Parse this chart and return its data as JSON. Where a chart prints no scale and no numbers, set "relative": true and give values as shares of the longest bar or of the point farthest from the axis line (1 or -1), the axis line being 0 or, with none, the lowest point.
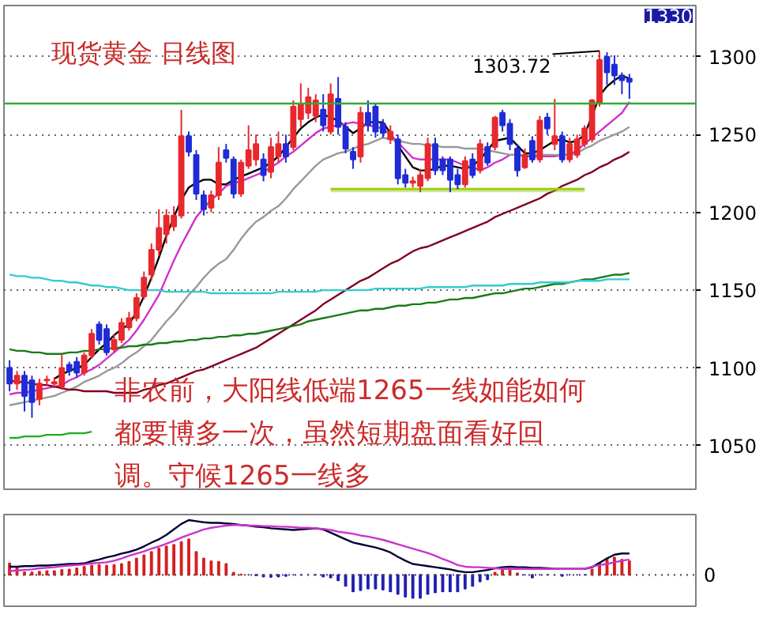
{
  "chart_data": [
    {
      "type": "candlestick",
      "title": "现货黄金  日线图",
      "categories": [
        null,
        null,
        null,
        null,
        null,
        null,
        null,
        null,
        null,
        null,
        null,
        null,
        null,
        null,
        null,
        null,
        null,
        null,
        null,
        null,
        null,
        null,
        null,
        null,
        null,
        null,
        null,
        null,
        null,
        null,
        null,
        null,
        null,
        null,
        null,
        null,
        null,
        null,
        null,
        null,
        null,
        null,
        null,
        null,
        null,
        null,
        null,
        null,
        null,
        null,
        null,
        null,
        null,
        null,
        null,
        null,
        null,
        null,
        null,
        null,
        null,
        null,
        null,
        null,
        null,
        null,
        null,
        null,
        null,
        null,
        null,
        null,
        null,
        null,
        null,
        null,
        null,
        null,
        null,
        null,
        null,
        null,
        null,
        null
      ],
      "ohlc": [
        [
          1100,
          1105,
          1085,
          1090
        ],
        [
          1090,
          1098,
          1086,
          1095
        ],
        [
          1095,
          1098,
          1072,
          1082
        ],
        [
          1092,
          1095,
          1068,
          1078
        ],
        [
          1080,
          1093,
          1076,
          1090
        ],
        [
          1092,
          1095,
          1089,
          1092.5
        ],
        [
          1090,
          1094,
          1087,
          1091
        ],
        [
          1088,
          1109,
          1086,
          1100
        ],
        [
          1102,
          1104,
          1095,
          1098
        ],
        [
          1104,
          1107,
          1094,
          1097
        ],
        [
          1097,
          1110,
          1095,
          1108
        ],
        [
          1108,
          1125,
          1106,
          1122
        ],
        [
          1128,
          1130,
          1115,
          1118
        ],
        [
          1125,
          1128,
          1108,
          1110
        ],
        [
          1112,
          1122,
          1110,
          1118
        ],
        [
          1118,
          1132,
          1116,
          1129
        ],
        [
          1126,
          1136,
          1124,
          1132
        ],
        [
          1132,
          1148,
          1130,
          1145
        ],
        [
          1146,
          1162,
          1144,
          1158
        ],
        [
          1160,
          1180,
          1156,
          1176
        ],
        [
          1176,
          1202,
          1172,
          1190
        ],
        [
          1186,
          1202,
          1180,
          1198
        ],
        [
          1191,
          1204,
          1188,
          1198
        ],
        [
          1198,
          1266,
          1196,
          1249
        ],
        [
          1249,
          1252,
          1236,
          1239
        ],
        [
          1237,
          1240,
          1208,
          1212
        ],
        [
          1211,
          1214,
          1198,
          1202
        ],
        [
          1203,
          1214,
          1200,
          1211
        ],
        [
          1211,
          1242,
          1208,
          1232
        ],
        [
          1240,
          1244,
          1232,
          1235
        ],
        [
          1234,
          1236,
          1209,
          1212
        ],
        [
          1212,
          1234,
          1210,
          1232
        ],
        [
          1230,
          1256,
          1228,
          1240
        ],
        [
          1234,
          1250,
          1230,
          1244
        ],
        [
          1234,
          1238,
          1220,
          1224
        ],
        [
          1226,
          1248,
          1222,
          1242
        ],
        [
          1236,
          1252,
          1232,
          1244
        ],
        [
          1244,
          1250,
          1232,
          1236
        ],
        [
          1242,
          1272,
          1240,
          1268
        ],
        [
          1260,
          1283,
          1255,
          1270
        ],
        [
          1264,
          1280,
          1260,
          1274
        ],
        [
          1262,
          1276,
          1258,
          1272
        ],
        [
          1266,
          1276,
          1252,
          1256
        ],
        [
          1252,
          1283,
          1250,
          1276
        ],
        [
          1273,
          1287,
          1250,
          1255
        ],
        [
          1255,
          1258,
          1238,
          1241
        ],
        [
          1239,
          1242,
          1228,
          1234
        ],
        [
          1236,
          1268,
          1232,
          1264
        ],
        [
          1264,
          1272,
          1252,
          1256
        ],
        [
          1268,
          1270,
          1248,
          1252
        ],
        [
          1257,
          1260,
          1248,
          1251
        ],
        [
          1247,
          1256,
          1244,
          1252
        ],
        [
          1247,
          1250,
          1218,
          1222
        ],
        [
          1224,
          1228,
          1216,
          1219
        ],
        [
          1219,
          1223,
          1216,
          1220
        ],
        [
          1217,
          1228,
          1213,
          1224
        ],
        [
          1222,
          1248,
          1220,
          1244
        ],
        [
          1244,
          1248,
          1224,
          1227
        ],
        [
          1234,
          1236,
          1224,
          1227
        ],
        [
          1234,
          1236,
          1213,
          1221
        ],
        [
          1224,
          1228,
          1215,
          1218
        ],
        [
          1218,
          1236,
          1216,
          1233
        ],
        [
          1234,
          1238,
          1222,
          1224
        ],
        [
          1227,
          1247,
          1225,
          1244
        ],
        [
          1242,
          1245,
          1230,
          1232
        ],
        [
          1242,
          1262,
          1240,
          1261
        ],
        [
          1264,
          1266,
          1252,
          1256
        ],
        [
          1257,
          1260,
          1240,
          1244
        ],
        [
          1241,
          1244,
          1223,
          1227
        ],
        [
          1229,
          1241,
          1228,
          1237
        ],
        [
          1246,
          1249,
          1232,
          1234
        ],
        [
          1234,
          1262,
          1232,
          1259
        ],
        [
          1261,
          1264,
          1250,
          1254
        ],
        [
          1244,
          1273,
          1240,
          1249
        ],
        [
          1249,
          1252,
          1232,
          1234
        ],
        [
          1234,
          1248,
          1232,
          1244
        ],
        [
          1237,
          1250,
          1235,
          1247
        ],
        [
          1244,
          1256,
          1242,
          1254
        ],
        [
          1247,
          1273,
          1245,
          1272
        ],
        [
          1270,
          1303.72,
          1268,
          1298
        ],
        [
          1300,
          1303,
          1282,
          1290
        ],
        [
          1295,
          1301,
          1282,
          1288
        ],
        [
          1288,
          1290,
          1276,
          1285
        ],
        [
          1286,
          1289,
          1273,
          1284
        ]
      ],
      "series": [
        {
          "type": "line",
          "color": "#000000",
          "values": [
            null,
            null,
            null,
            null,
            null,
            null,
            1093,
            1096,
            1098,
            1100,
            1102,
            1107,
            1112,
            1116,
            1121,
            1125,
            1128,
            1136,
            1146,
            1158,
            1171,
            1185,
            1197,
            1208,
            1216,
            1219,
            1221,
            1221,
            1218,
            1218,
            1221,
            1223,
            1225,
            1227,
            1229,
            1232,
            1236,
            1242,
            1248,
            1254,
            1258,
            1261,
            1263,
            1261,
            1259,
            1255,
            1251,
            1254,
            1258,
            1258,
            1258,
            1251,
            1243,
            1236,
            1229,
            1227,
            1227,
            1228,
            1230,
            1230,
            1229,
            1228,
            1230,
            1234,
            1240,
            1246,
            1247,
            1248,
            1243,
            1238,
            1238,
            1240,
            1243,
            1246,
            1247,
            1245,
            1246,
            1250,
            1262,
            1275,
            1281,
            1285,
            1288,
            1286
          ]
        },
        {
          "type": "line",
          "color": "#d030d0",
          "values": [
            1083,
            1084,
            1084,
            1085,
            1086,
            1087,
            1088,
            1089,
            1092,
            1094,
            1097,
            1099,
            1102,
            1106,
            1110,
            1114,
            1118,
            1124,
            1131,
            1139,
            1147,
            1158,
            1169,
            1179,
            1188,
            1197,
            1203,
            1208,
            1212,
            1217,
            1219,
            1220,
            1222,
            1224,
            1226,
            1229,
            1232,
            1236,
            1239,
            1243,
            1247,
            1251,
            1254,
            1255,
            1256,
            1257,
            1258,
            1257,
            1256,
            1255,
            1254,
            1250,
            1245,
            1240,
            1235,
            1234,
            1234,
            1234,
            1234,
            1234,
            1232,
            1230,
            1229,
            1227,
            1229,
            1232,
            1234,
            1237,
            1237,
            1236,
            1236,
            1236,
            1236,
            1236,
            1237,
            1237,
            1240,
            1244,
            1248,
            1252,
            1256,
            1260,
            1264,
            1271
          ]
        },
        {
          "type": "line",
          "color": "#999999",
          "values": [
            1076,
            1077,
            1078,
            1079,
            1080,
            1081,
            1082,
            1084,
            1086,
            1088,
            1091,
            1093,
            1095,
            1098,
            1100,
            1103,
            1107,
            1110,
            1114,
            1118,
            1124,
            1130,
            1135,
            1141,
            1147,
            1152,
            1158,
            1163,
            1167,
            1170,
            1176,
            1183,
            1189,
            1194,
            1197,
            1201,
            1204,
            1209,
            1215,
            1220,
            1225,
            1230,
            1234,
            1236,
            1238,
            1239,
            1241,
            1243,
            1244,
            1246,
            1248,
            1247,
            1246,
            1245,
            1244,
            1244,
            1243,
            1243,
            1242,
            1242,
            1242,
            1241,
            1241,
            1241,
            1240,
            1239,
            1238,
            1237,
            1237,
            1237,
            1237,
            1237,
            1237,
            1237,
            1237,
            1237,
            1238,
            1241,
            1243,
            1246,
            1248,
            1250,
            1252,
            1255
          ]
        },
        {
          "type": "line",
          "color": "#800020",
          "values": [
            1092,
            1091,
            1091,
            1090,
            1089,
            1089,
            1088,
            1087,
            1086,
            1086,
            1085,
            1085,
            1085,
            1085,
            1084,
            1084,
            1084,
            1084,
            1086,
            1087,
            1089,
            1090,
            1092,
            1094,
            1096,
            1098,
            1099,
            1101,
            1103,
            1105,
            1107,
            1109,
            1111,
            1113,
            1116,
            1119,
            1122,
            1125,
            1128,
            1131,
            1134,
            1137,
            1141,
            1144,
            1147,
            1150,
            1153,
            1156,
            1158,
            1161,
            1164,
            1167,
            1169,
            1172,
            1175,
            1177,
            1178,
            1180,
            1182,
            1184,
            1186,
            1188,
            1190,
            1192,
            1194,
            1197,
            1199,
            1201,
            1203,
            1205,
            1207,
            1209,
            1212,
            1214,
            1217,
            1219,
            1221,
            1224,
            1226,
            1229,
            1231,
            1234,
            1236,
            1239
          ]
        },
        {
          "type": "line",
          "color": "#1a7a1a",
          "values": [
            1112,
            1111,
            1111,
            1110,
            1110,
            1109,
            1109,
            1109,
            1110,
            1110,
            1111,
            1111,
            1112,
            1112,
            1113,
            1113,
            1114,
            1114,
            1115,
            1115,
            1116,
            1116,
            1117,
            1117,
            1118,
            1118,
            1119,
            1119,
            1120,
            1120,
            1121,
            1121,
            1122,
            1122,
            1123,
            1124,
            1125,
            1126,
            1127,
            1128,
            1130,
            1131,
            1132,
            1133,
            1134,
            1135,
            1136,
            1137,
            1137,
            1138,
            1138,
            1139,
            1140,
            1140,
            1141,
            1141,
            1142,
            1142,
            1143,
            1144,
            1144,
            1145,
            1145,
            1146,
            1147,
            1148,
            1148,
            1149,
            1150,
            1151,
            1151,
            1152,
            1153,
            1154,
            1154,
            1155,
            1156,
            1157,
            1157,
            1158,
            1159,
            1160,
            1160,
            1161
          ]
        },
        {
          "type": "line",
          "color": "#33cccc",
          "values": [
            1160,
            1159,
            1159,
            1158,
            1158,
            1157,
            1156,
            1156,
            1155,
            1155,
            1154,
            1153,
            1153,
            1152,
            1152,
            1151,
            1150,
            1150,
            1150,
            1150,
            1150,
            1149,
            1149,
            1149,
            1149,
            1149,
            1149,
            1148,
            1148,
            1148,
            1148,
            1148,
            1148,
            1148,
            1148,
            1148,
            1149,
            1149,
            1149,
            1149,
            1149,
            1149,
            1150,
            1150,
            1150,
            1150,
            1150,
            1150,
            1150,
            1151,
            1151,
            1151,
            1151,
            1151,
            1151,
            1151,
            1152,
            1152,
            1152,
            1152,
            1152,
            1152,
            1153,
            1153,
            1153,
            1153,
            1153,
            1154,
            1154,
            1154,
            1154,
            1155,
            1155,
            1155,
            1155,
            1155,
            1156,
            1156,
            1156,
            1156,
            1157,
            1157,
            1157,
            1157
          ]
        },
        {
          "type": "line",
          "color": "#22aa22",
          "values": [
            1055,
            1055,
            1056,
            1056,
            1056,
            1057,
            1057,
            1057,
            1058,
            1058,
            1058,
            1059,
            null,
            null,
            null,
            null,
            null,
            null,
            null,
            null,
            null,
            null,
            null,
            null,
            null,
            null,
            null,
            null,
            null,
            null,
            null,
            null,
            null,
            null,
            null,
            null,
            null,
            null,
            null,
            null,
            null,
            null,
            null,
            null,
            null,
            null,
            null,
            null,
            null,
            null,
            null,
            null,
            null,
            null,
            null,
            null,
            null,
            null,
            null,
            null,
            null,
            null,
            null,
            null,
            null,
            null,
            null,
            null,
            null,
            null,
            null,
            null,
            null,
            null,
            null,
            null,
            null,
            null,
            null,
            null,
            null,
            null,
            null,
            null
          ]
        },
        {
          "type": "line",
          "color": "#99cc11",
          "values": [
            null,
            null,
            null,
            null,
            null,
            null,
            null,
            null,
            null,
            null,
            null,
            null,
            null,
            null,
            null,
            null,
            null,
            null,
            null,
            null,
            null,
            null,
            null,
            null,
            null,
            null,
            null,
            null,
            null,
            null,
            null,
            null,
            null,
            null,
            null,
            null,
            null,
            null,
            null,
            null,
            null,
            null,
            null,
            1215,
            1215,
            1215,
            1215,
            1215,
            1215,
            1215,
            1215,
            1215,
            1215,
            1215,
            1215,
            1215,
            1215,
            1215,
            1215,
            1215,
            1215,
            1215,
            1215,
            1215,
            1215,
            1215,
            1215,
            1215,
            1215,
            1215,
            1215,
            1215,
            1215,
            1215,
            1215,
            1215,
            1215,
            1215,
            null,
            null,
            null,
            null,
            null,
            null
          ],
          "lower": [
            null,
            null,
            null,
            null,
            null,
            null,
            null,
            null,
            null,
            null,
            null,
            null,
            null,
            null,
            null,
            null,
            null,
            null,
            null,
            null,
            null,
            null,
            null,
            null,
            null,
            null,
            null,
            null,
            null,
            null,
            null,
            null,
            null,
            null,
            null,
            null,
            null,
            null,
            null,
            null,
            null,
            null,
            null,
            1213,
            1213,
            1213,
            1213,
            1213,
            1213,
            1213,
            1213,
            1213,
            1213,
            1213,
            1213,
            1213,
            1213,
            1213,
            1213,
            1213,
            1213,
            1213,
            1213,
            1213,
            1213,
            1213,
            1213,
            1213,
            1213,
            1213,
            1213,
            1213,
            1213,
            1213,
            1213,
            1213,
            1213,
            1213,
            null,
            null,
            null,
            null,
            null,
            null
          ],
          "upper": [
            null,
            null,
            null,
            null,
            null,
            null,
            null,
            null,
            null,
            null,
            null,
            null,
            null,
            null,
            null,
            null,
            null,
            null,
            null,
            null,
            null,
            null,
            null,
            null,
            null,
            null,
            null,
            null,
            null,
            null,
            null,
            null,
            null,
            null,
            null,
            null,
            null,
            null,
            null,
            null,
            null,
            null,
            null,
            1216,
            1216,
            1216,
            1216,
            1216,
            1216,
            1216,
            1216,
            1216,
            1216,
            1216,
            1216,
            1216,
            1216,
            1216,
            1216,
            1216,
            1216,
            1216,
            1216,
            1216,
            1216,
            1216,
            1216,
            1216,
            1216,
            1216,
            1216,
            1216,
            1216,
            1216,
            1216,
            1216,
            1216,
            1216,
            null,
            null,
            null,
            null,
            null,
            null
          ]
        }
      ],
      "ref_lines": [
        {
          "axis": "y",
          "value": 1270,
          "color": "#33aa33",
          "line_style": "solid"
        }
      ],
      "ylim": [
        1022,
        1333
      ],
      "yticks": [
        1050,
        1100,
        1150,
        1200,
        1250,
        1300
      ],
      "grid": "y",
      "tick_labels": "y",
      "annotations": [
        "1303.72",
        "1330",
        "非农前，大阳线低端1265一线如能如何都要博多一次，虽然短期盘面看好回调。守候1265一线多"
      ]
    },
    {
      "type": "bar",
      "relative": true,
      "tick_labels": "y",
      "categories": [
        null,
        null,
        null,
        null,
        null,
        null,
        null,
        null,
        null,
        null,
        null,
        null,
        null,
        null,
        null,
        null,
        null,
        null,
        null,
        null,
        null,
        null,
        null,
        null,
        null,
        null,
        null,
        null,
        null,
        null,
        null,
        null,
        null,
        null,
        null,
        null,
        null,
        null,
        null,
        null,
        null,
        null,
        null,
        null,
        null,
        null,
        null,
        null,
        null,
        null,
        null,
        null,
        null,
        null,
        null,
        null,
        null,
        null,
        null,
        null,
        null,
        null,
        null,
        null,
        null,
        null,
        null,
        null,
        null,
        null,
        null,
        null,
        null,
        null,
        null,
        null,
        null,
        null,
        null,
        null,
        null,
        null,
        null,
        null
      ],
      "series": [
        {
          "type": "bar",
          "values": [
            0.21,
            0.15,
            0.05,
            0.05,
            0.06,
            0.07,
            0.07,
            0.09,
            0.1,
            0.12,
            0.15,
            0.17,
            0.18,
            0.17,
            0.18,
            0.2,
            0.24,
            0.3,
            0.36,
            0.42,
            0.48,
            0.52,
            0.55,
            0.6,
            0.65,
            0.42,
            0.3,
            0.25,
            0.24,
            0.2,
            0.04,
            0.01,
            0,
            -0.01,
            -0.03,
            -0.04,
            -0.03,
            -0.02,
            0,
            0,
            0,
            0,
            -0.03,
            -0.05,
            -0.1,
            -0.2,
            -0.3,
            -0.28,
            -0.25,
            -0.25,
            -0.27,
            -0.3,
            -0.35,
            -0.4,
            -0.42,
            -0.42,
            -0.35,
            -0.32,
            -0.3,
            -0.3,
            -0.3,
            -0.25,
            -0.2,
            -0.12,
            -0.08,
            0.04,
            0.1,
            0.08,
            0.03,
            0,
            -0.05,
            0,
            0,
            0,
            -0.02,
            0,
            0,
            0,
            0.1,
            0.22,
            0.3,
            0.32,
            0.28,
            0.25
          ],
          "colors": [
            "#d42020",
            "#d42020",
            "#d42020",
            "#d42020",
            "#d42020",
            "#d42020",
            "#d42020",
            "#d42020",
            "#d42020",
            "#d42020",
            "#d42020",
            "#d42020",
            "#d42020",
            "#d42020",
            "#d42020",
            "#d42020",
            "#d42020",
            "#d42020",
            "#d42020",
            "#d42020",
            "#d42020",
            "#d42020",
            "#d42020",
            "#d42020",
            "#d42020",
            "#d42020",
            "#d42020",
            "#d42020",
            "#d42020",
            "#d42020",
            "#d42020",
            "#d42020",
            "#2020b0",
            "#2020b0",
            "#2020b0",
            "#2020b0",
            "#2020b0",
            "#2020b0",
            "#2020b0",
            "#2020b0",
            "#2020b0",
            "#2020b0",
            "#2020b0",
            "#2020b0",
            "#2020b0",
            "#2020b0",
            "#2020b0",
            "#2020b0",
            "#2020b0",
            "#2020b0",
            "#2020b0",
            "#2020b0",
            "#2020b0",
            "#2020b0",
            "#2020b0",
            "#2020b0",
            "#2020b0",
            "#2020b0",
            "#2020b0",
            "#2020b0",
            "#2020b0",
            "#2020b0",
            "#2020b0",
            "#2020b0",
            "#2020b0",
            "#d42020",
            "#d42020",
            "#d42020",
            "#d42020",
            "#2020b0",
            "#2020b0",
            "#2020b0",
            "#2020b0",
            "#2020b0",
            "#2020b0",
            "#2020b0",
            "#2020b0",
            "#2020b0",
            "#d42020",
            "#d42020",
            "#d42020",
            "#d42020",
            "#d42020",
            "#d42020"
          ]
        },
        {
          "type": "line",
          "color": "#000033",
          "values": [
            0.15,
            0.15,
            0.16,
            0.16,
            0.17,
            0.17,
            0.18,
            0.19,
            0.2,
            0.2,
            0.21,
            0.25,
            0.28,
            0.32,
            0.35,
            0.39,
            0.42,
            0.46,
            0.52,
            0.59,
            0.65,
            0.73,
            0.83,
            0.93,
            1.0,
            0.98,
            0.96,
            0.95,
            0.95,
            0.94,
            0.93,
            0.91,
            0.9,
            0.88,
            0.87,
            0.85,
            0.84,
            0.83,
            0.82,
            0.83,
            0.84,
            0.85,
            0.83,
            0.77,
            0.71,
            0.65,
            0.59,
            0.56,
            0.53,
            0.5,
            0.46,
            0.41,
            0.33,
            0.26,
            0.2,
            0.18,
            0.16,
            0.14,
            0.12,
            0.1,
            0.07,
            0.05,
            0.05,
            0.07,
            0.09,
            0.12,
            0.14,
            0.15,
            0.14,
            0.14,
            0.13,
            0.13,
            0.12,
            0.11,
            0.11,
            0.11,
            0.11,
            0.11,
            0.14,
            0.22,
            0.3,
            0.37,
            0.39,
            0.39
          ]
        },
        {
          "type": "line",
          "color": "#cc33cc",
          "values": [
            0.07,
            0.08,
            0.09,
            0.1,
            0.12,
            0.13,
            0.14,
            0.16,
            0.17,
            0.18,
            0.19,
            0.21,
            0.22,
            0.23,
            0.26,
            0.3,
            0.35,
            0.39,
            0.43,
            0.48,
            0.52,
            0.57,
            0.62,
            0.68,
            0.73,
            0.78,
            0.83,
            0.86,
            0.88,
            0.9,
            0.91,
            0.91,
            0.9,
            0.9,
            0.89,
            0.89,
            0.88,
            0.88,
            0.87,
            0.86,
            0.86,
            0.85,
            0.84,
            0.82,
            0.79,
            0.77,
            0.75,
            0.72,
            0.7,
            0.67,
            0.64,
            0.6,
            0.56,
            0.52,
            0.48,
            0.44,
            0.4,
            0.35,
            0.29,
            0.24,
            0.18,
            0.15,
            0.14,
            0.14,
            0.13,
            0.12,
            0.11,
            0.11,
            0.11,
            0.11,
            0.11,
            0.11,
            0.11,
            0.11,
            0.11,
            0.11,
            0.11,
            0.11,
            0.15,
            0.18,
            0.2,
            0.23,
            0.26,
            0.28
          ]
        }
      ],
      "ref_lines": [
        {
          "axis": "y",
          "value": 0,
          "label": "0",
          "line_style": "dotted"
        }
      ]
    }
  ]
}
